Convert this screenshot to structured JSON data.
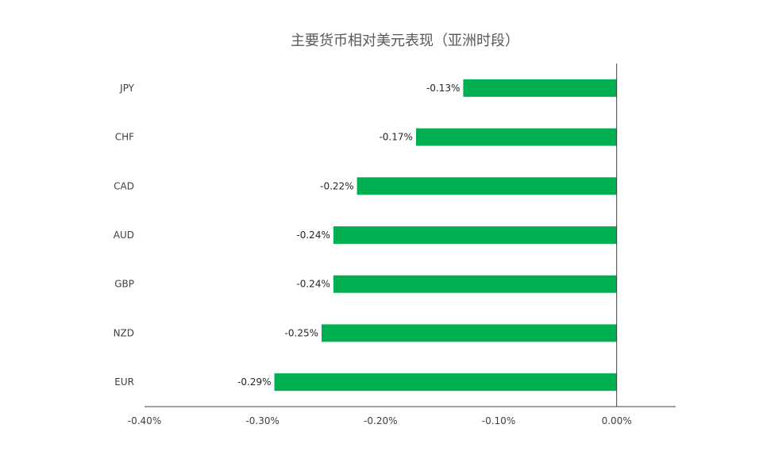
{
  "chart_data": {
    "type": "bar",
    "orientation": "horizontal",
    "title": "主要货币相对美元表现（亚洲时段）",
    "categories": [
      "JPY",
      "CHF",
      "CAD",
      "AUD",
      "GBP",
      "NZD",
      "EUR"
    ],
    "values": [
      -0.13,
      -0.17,
      -0.22,
      -0.24,
      -0.24,
      -0.25,
      -0.29
    ],
    "data_labels": [
      "-0.13%",
      "-0.17%",
      "-0.22%",
      "-0.24%",
      "-0.24%",
      "-0.25%",
      "-0.29%"
    ],
    "xlim": [
      -0.4,
      0.05
    ],
    "x_ticks": [
      -0.4,
      -0.3,
      -0.2,
      -0.1,
      0.0
    ],
    "x_tick_labels": [
      "-0.40%",
      "-0.30%",
      "-0.20%",
      "-0.10%",
      "0.00%"
    ],
    "xlabel": "",
    "ylabel": "",
    "grid": false,
    "legend": "none",
    "bar_color": "#00B050"
  }
}
